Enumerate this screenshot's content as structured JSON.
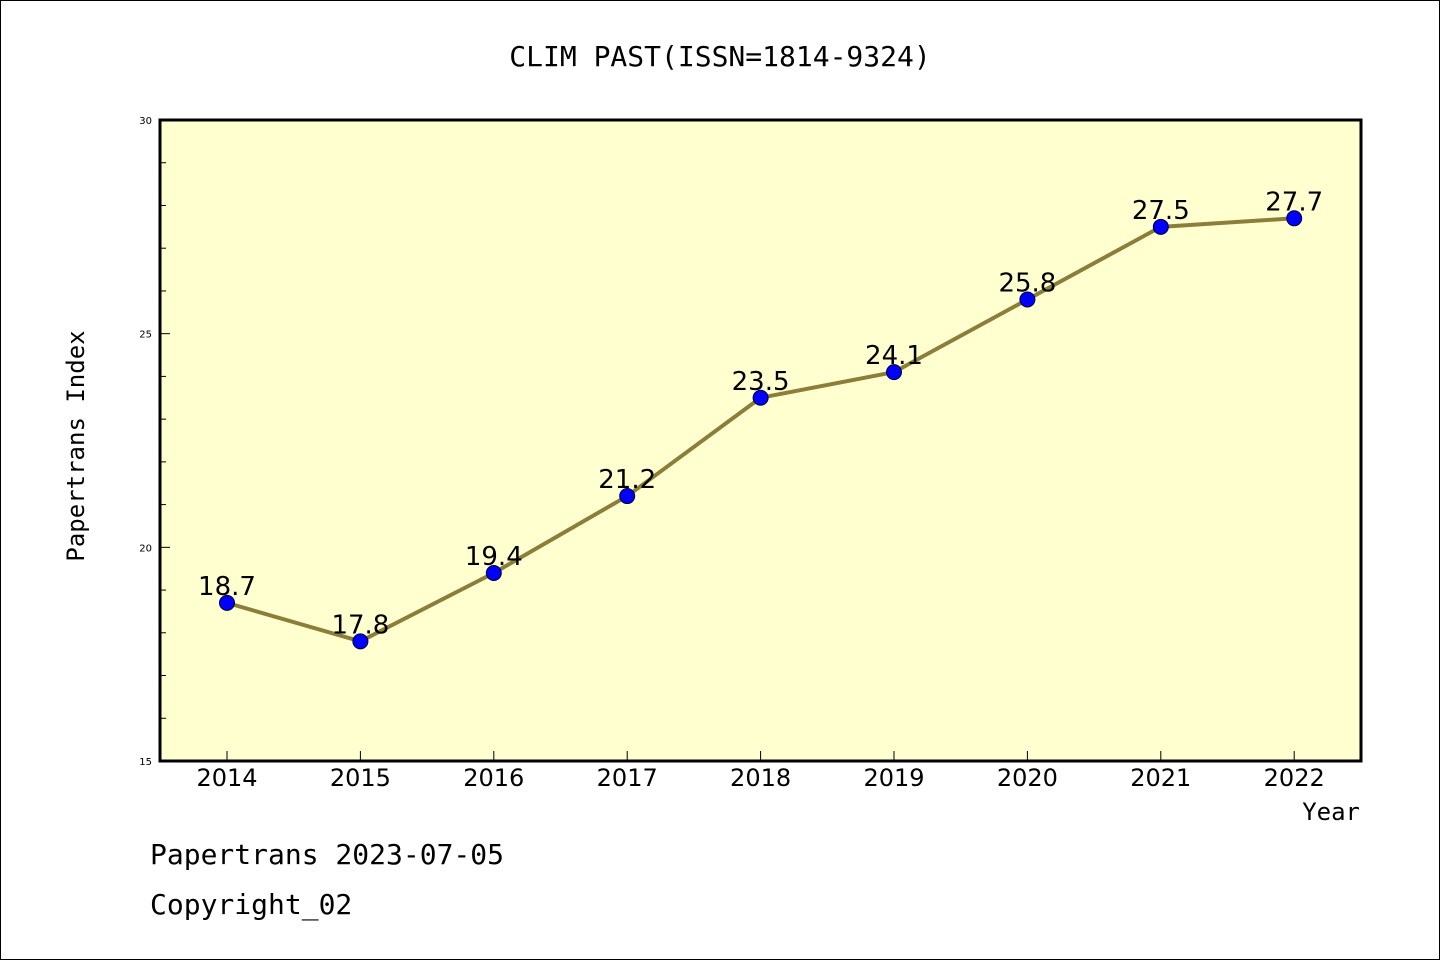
{
  "chart_data": {
    "type": "line",
    "title": "CLIM PAST(ISSN=1814-9324)",
    "xlabel": "Year",
    "ylabel": "Papertrans Index",
    "categories": [
      "2014",
      "2015",
      "2016",
      "2017",
      "2018",
      "2019",
      "2020",
      "2021",
      "2022"
    ],
    "series": [
      {
        "values": [
          18.7,
          17.8,
          19.4,
          21.2,
          23.5,
          24.1,
          25.8,
          27.5,
          27.7
        ],
        "labels": [
          "18.7",
          "17.8",
          "19.4",
          "21.2",
          "23.5",
          "24.1",
          "25.8",
          "27.5",
          "27.7"
        ]
      }
    ],
    "ylim": [
      15,
      30
    ],
    "yticks": [
      "15",
      "20",
      "25",
      "30"
    ],
    "grid": false,
    "colors": {
      "plot_background": "#ffffd0",
      "line": "#8c7e38",
      "marker": "#0000ff"
    }
  },
  "footer": {
    "line1": "Papertrans 2023-07-05",
    "line2": "Copyright_02"
  }
}
